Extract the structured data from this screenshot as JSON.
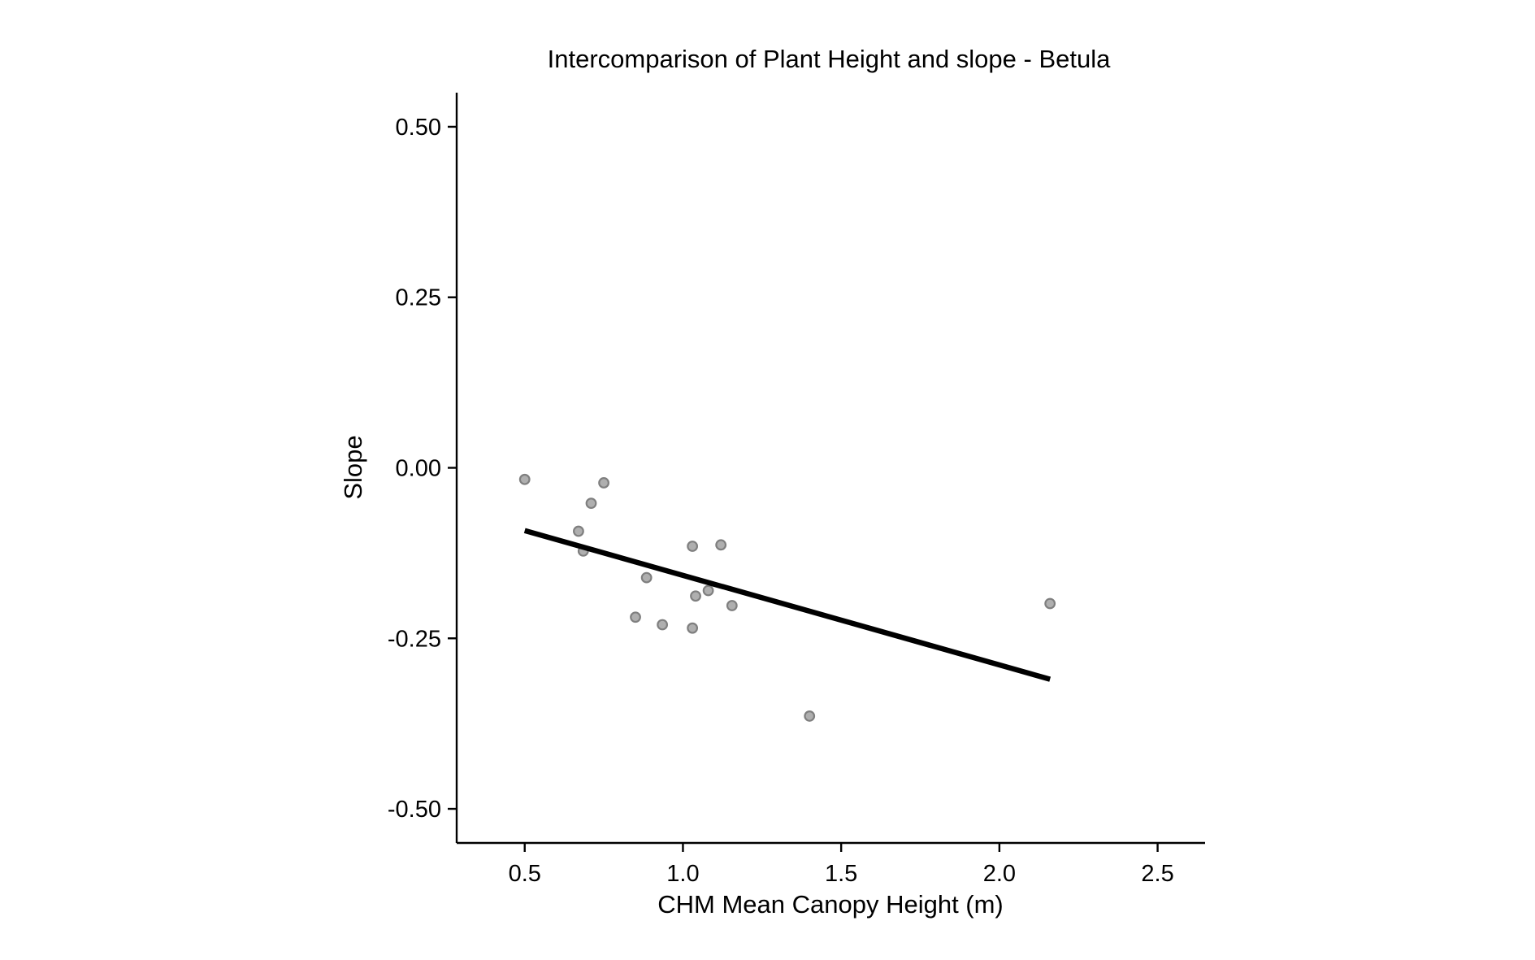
{
  "chart_data": {
    "type": "scatter",
    "title": "Intercomparison of Plant Height and slope - Betula",
    "xlabel": "CHM Mean Canopy Height (m)",
    "ylabel": "Slope",
    "xlim": [
      0.285,
      2.65
    ],
    "ylim": [
      -0.55,
      0.55
    ],
    "xticks": [
      0.5,
      1.0,
      1.5,
      2.0,
      2.5
    ],
    "xtick_labels": [
      "0.5",
      "1.0",
      "1.5",
      "2.0",
      "2.5"
    ],
    "yticks": [
      0.5,
      0.25,
      0.0,
      -0.25,
      -0.5
    ],
    "ytick_labels": [
      "0.50",
      "0.25",
      "0.00",
      "-0.25",
      "-0.50"
    ],
    "grid": false,
    "points": [
      {
        "x": 0.5,
        "y": -0.017
      },
      {
        "x": 0.67,
        "y": -0.093
      },
      {
        "x": 0.685,
        "y": -0.122
      },
      {
        "x": 0.71,
        "y": -0.052
      },
      {
        "x": 0.75,
        "y": -0.022
      },
      {
        "x": 0.85,
        "y": -0.219
      },
      {
        "x": 0.885,
        "y": -0.161
      },
      {
        "x": 0.935,
        "y": -0.23
      },
      {
        "x": 1.03,
        "y": -0.115
      },
      {
        "x": 1.03,
        "y": -0.235
      },
      {
        "x": 1.04,
        "y": -0.188
      },
      {
        "x": 1.08,
        "y": -0.18
      },
      {
        "x": 1.12,
        "y": -0.113
      },
      {
        "x": 1.155,
        "y": -0.202
      },
      {
        "x": 1.4,
        "y": -0.364
      },
      {
        "x": 2.16,
        "y": -0.199
      }
    ],
    "trend_line": {
      "x": [
        0.5,
        2.16
      ],
      "y": [
        -0.092,
        -0.31
      ]
    },
    "colors": {
      "points": "#a6a6a6",
      "point_stroke": "#7f7f7f",
      "trend": "#000000"
    }
  }
}
